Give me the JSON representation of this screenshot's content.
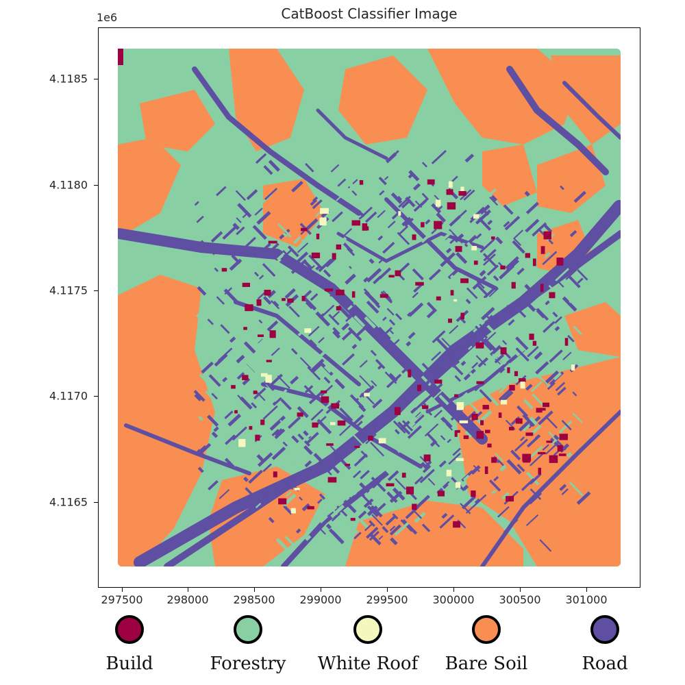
{
  "title": "CatBoost Classifier Image",
  "y_offset_label": "1e6",
  "y_ticks": [
    "4.1185",
    "4.1180",
    "4.1175",
    "4.1170",
    "4.1165"
  ],
  "x_ticks": [
    "297500",
    "298000",
    "298500",
    "299000",
    "299500",
    "300000",
    "300500",
    "301000"
  ],
  "legend": [
    {
      "label": "Build",
      "color": "#9e0142"
    },
    {
      "label": "Forestry",
      "color": "#88cfa4"
    },
    {
      "label": "White Roof",
      "color": "#f4f8bf"
    },
    {
      "label": "Bare Soil",
      "color": "#f98e52"
    },
    {
      "label": "Road",
      "color": "#5e4fa2"
    }
  ]
}
